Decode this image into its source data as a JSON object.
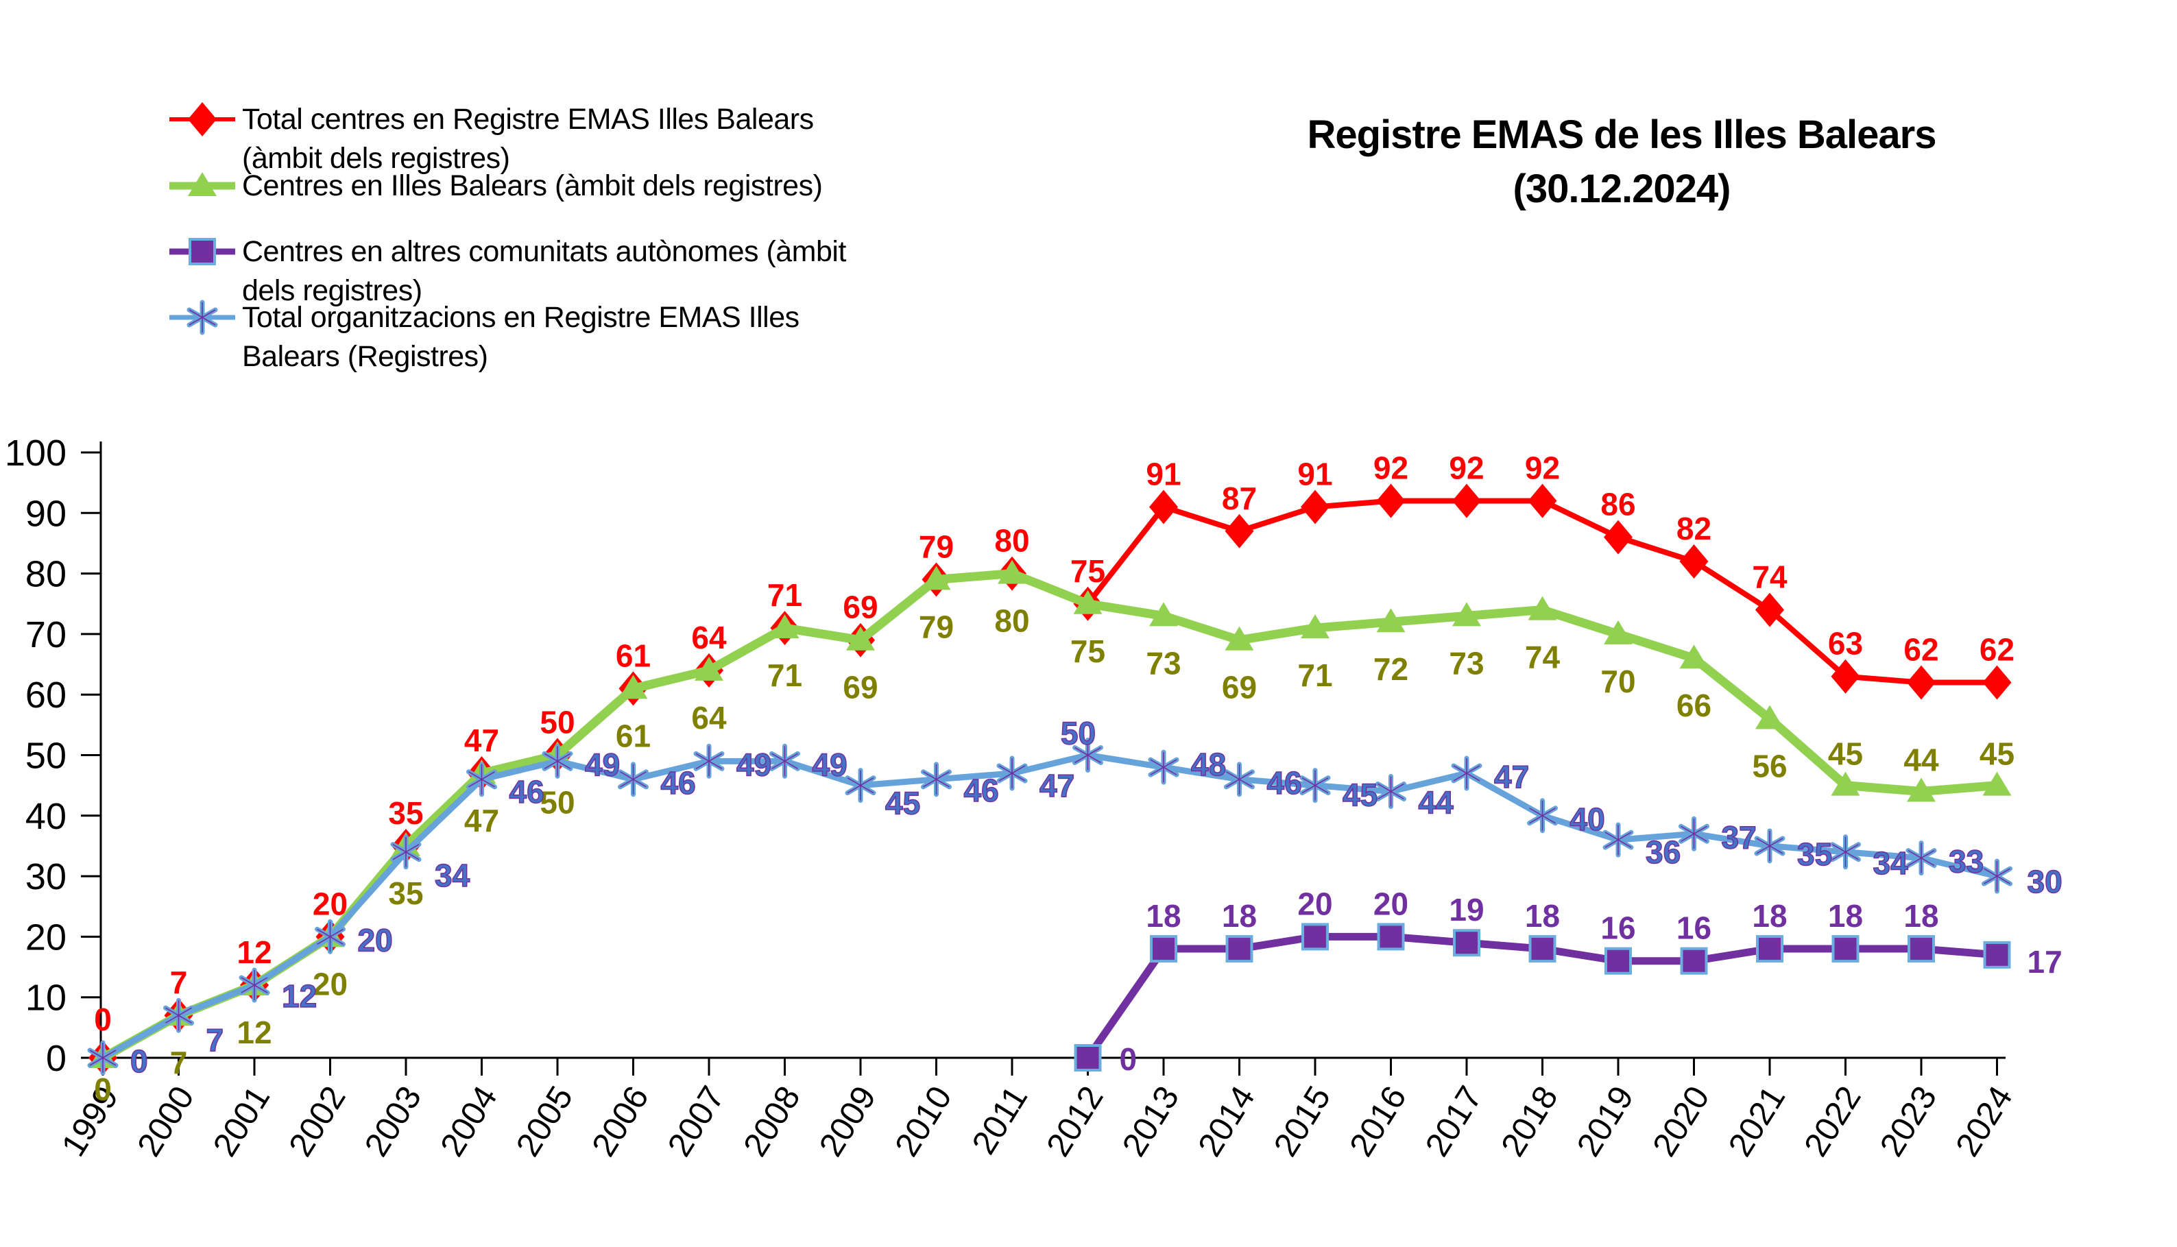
{
  "title": {
    "line1": "Registre  EMAS de les Illes Balears",
    "line2": "(30.12.2024)"
  },
  "chart_data": {
    "type": "line",
    "title": "Registre EMAS de les Illes Balears (30.12.2024)",
    "x": [
      1999,
      2000,
      2001,
      2002,
      2003,
      2004,
      2005,
      2006,
      2007,
      2008,
      2009,
      2010,
      2011,
      2012,
      2013,
      2014,
      2015,
      2016,
      2017,
      2018,
      2019,
      2020,
      2021,
      2022,
      2023,
      2024
    ],
    "ylim": [
      0,
      100
    ],
    "yticks": [
      0,
      10,
      20,
      30,
      40,
      50,
      60,
      70,
      80,
      90,
      100
    ],
    "grid": false,
    "legend_position": "top-left",
    "series": [
      {
        "key": "total_centres",
        "name": "Total centres en Registre EMAS Illes Balears (àmbit dels registres)",
        "legend_lines": "Total centres en Registre EMAS Illes Balears\n(àmbit dels registres)",
        "marker": "diamond",
        "color": "#FF0000",
        "label_color": "#FF0000",
        "values": [
          0,
          7,
          12,
          20,
          35,
          47,
          50,
          61,
          64,
          71,
          69,
          79,
          80,
          75,
          91,
          87,
          91,
          92,
          92,
          92,
          86,
          82,
          74,
          63,
          62,
          62
        ]
      },
      {
        "key": "centres_illes",
        "name": "Centres en Illes Balears (àmbit dels registres)",
        "legend_lines": "Centres en Illes Balears (àmbit dels registres)",
        "marker": "triangle-up",
        "color": "#92D050",
        "label_color": "#7F7F00",
        "values": [
          0,
          7,
          12,
          20,
          35,
          47,
          50,
          61,
          64,
          71,
          69,
          79,
          80,
          75,
          73,
          69,
          71,
          72,
          73,
          74,
          70,
          66,
          56,
          45,
          44,
          45
        ]
      },
      {
        "key": "centres_altres",
        "name": "Centres en altres comunitats autònomes (àmbit dels registres)",
        "legend_lines": "Centres en altres comunitats autònomes (àmbit\ndels registres)",
        "marker": "square",
        "color": "#7030A0",
        "marker_border": "#6CADDF",
        "label_color": "#7030A0",
        "values": [
          null,
          null,
          null,
          null,
          null,
          null,
          null,
          null,
          null,
          null,
          null,
          null,
          null,
          0,
          18,
          18,
          20,
          20,
          19,
          18,
          16,
          16,
          18,
          18,
          18,
          17
        ]
      },
      {
        "key": "total_orgs",
        "name": "Total organitzacions en Registre EMAS Illes Balears (Registres)",
        "legend_lines": "Total organitzacions en Registre EMAS Illes\nBalears (Registres)",
        "marker": "asterisk",
        "color": "#66A3DB",
        "label_color": "#4472C4",
        "label_outline": "#7030A0",
        "values": [
          0,
          7,
          12,
          20,
          34,
          46,
          49,
          46,
          49,
          49,
          45,
          46,
          47,
          50,
          48,
          46,
          45,
          44,
          47,
          40,
          36,
          37,
          35,
          34,
          33,
          30
        ]
      }
    ],
    "axis_color": "#000000"
  }
}
